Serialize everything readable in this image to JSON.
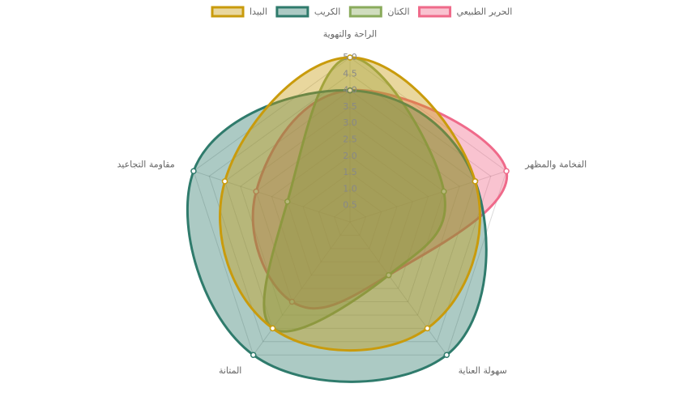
{
  "chart_data": {
    "type": "radar",
    "categories": [
      "الراحة والتهوية",
      "الفخامة والمظهر",
      "سهولة العناية",
      "المتانة",
      "مقاومة التجاعيد"
    ],
    "series": [
      {
        "name": "البيدا",
        "color": "#c99b0c",
        "values": [
          5,
          4,
          4,
          4,
          4
        ]
      },
      {
        "name": "الكريب",
        "color": "#2f7b6c",
        "values": [
          4,
          4,
          5,
          5,
          5
        ]
      },
      {
        "name": "الكتان",
        "color": "#8aab5c",
        "values": [
          5,
          3,
          2,
          4,
          2
        ]
      },
      {
        "name": "الحرير الطبيعي",
        "color": "#ef6a8a",
        "values": [
          4,
          5,
          2,
          3,
          3
        ]
      }
    ],
    "rlim": [
      0,
      5
    ],
    "rticks": [
      0.5,
      {
        "value": 1,
        "label": "1.0"
      },
      1.5,
      {
        "value": 2,
        "label": "2.0"
      },
      2.5,
      {
        "value": 3,
        "label": "3.0"
      },
      3.5,
      {
        "value": 4,
        "label": "4.0"
      },
      4.5,
      {
        "value": 5,
        "label": "5.0"
      }
    ],
    "grid": true,
    "legend": "top"
  }
}
